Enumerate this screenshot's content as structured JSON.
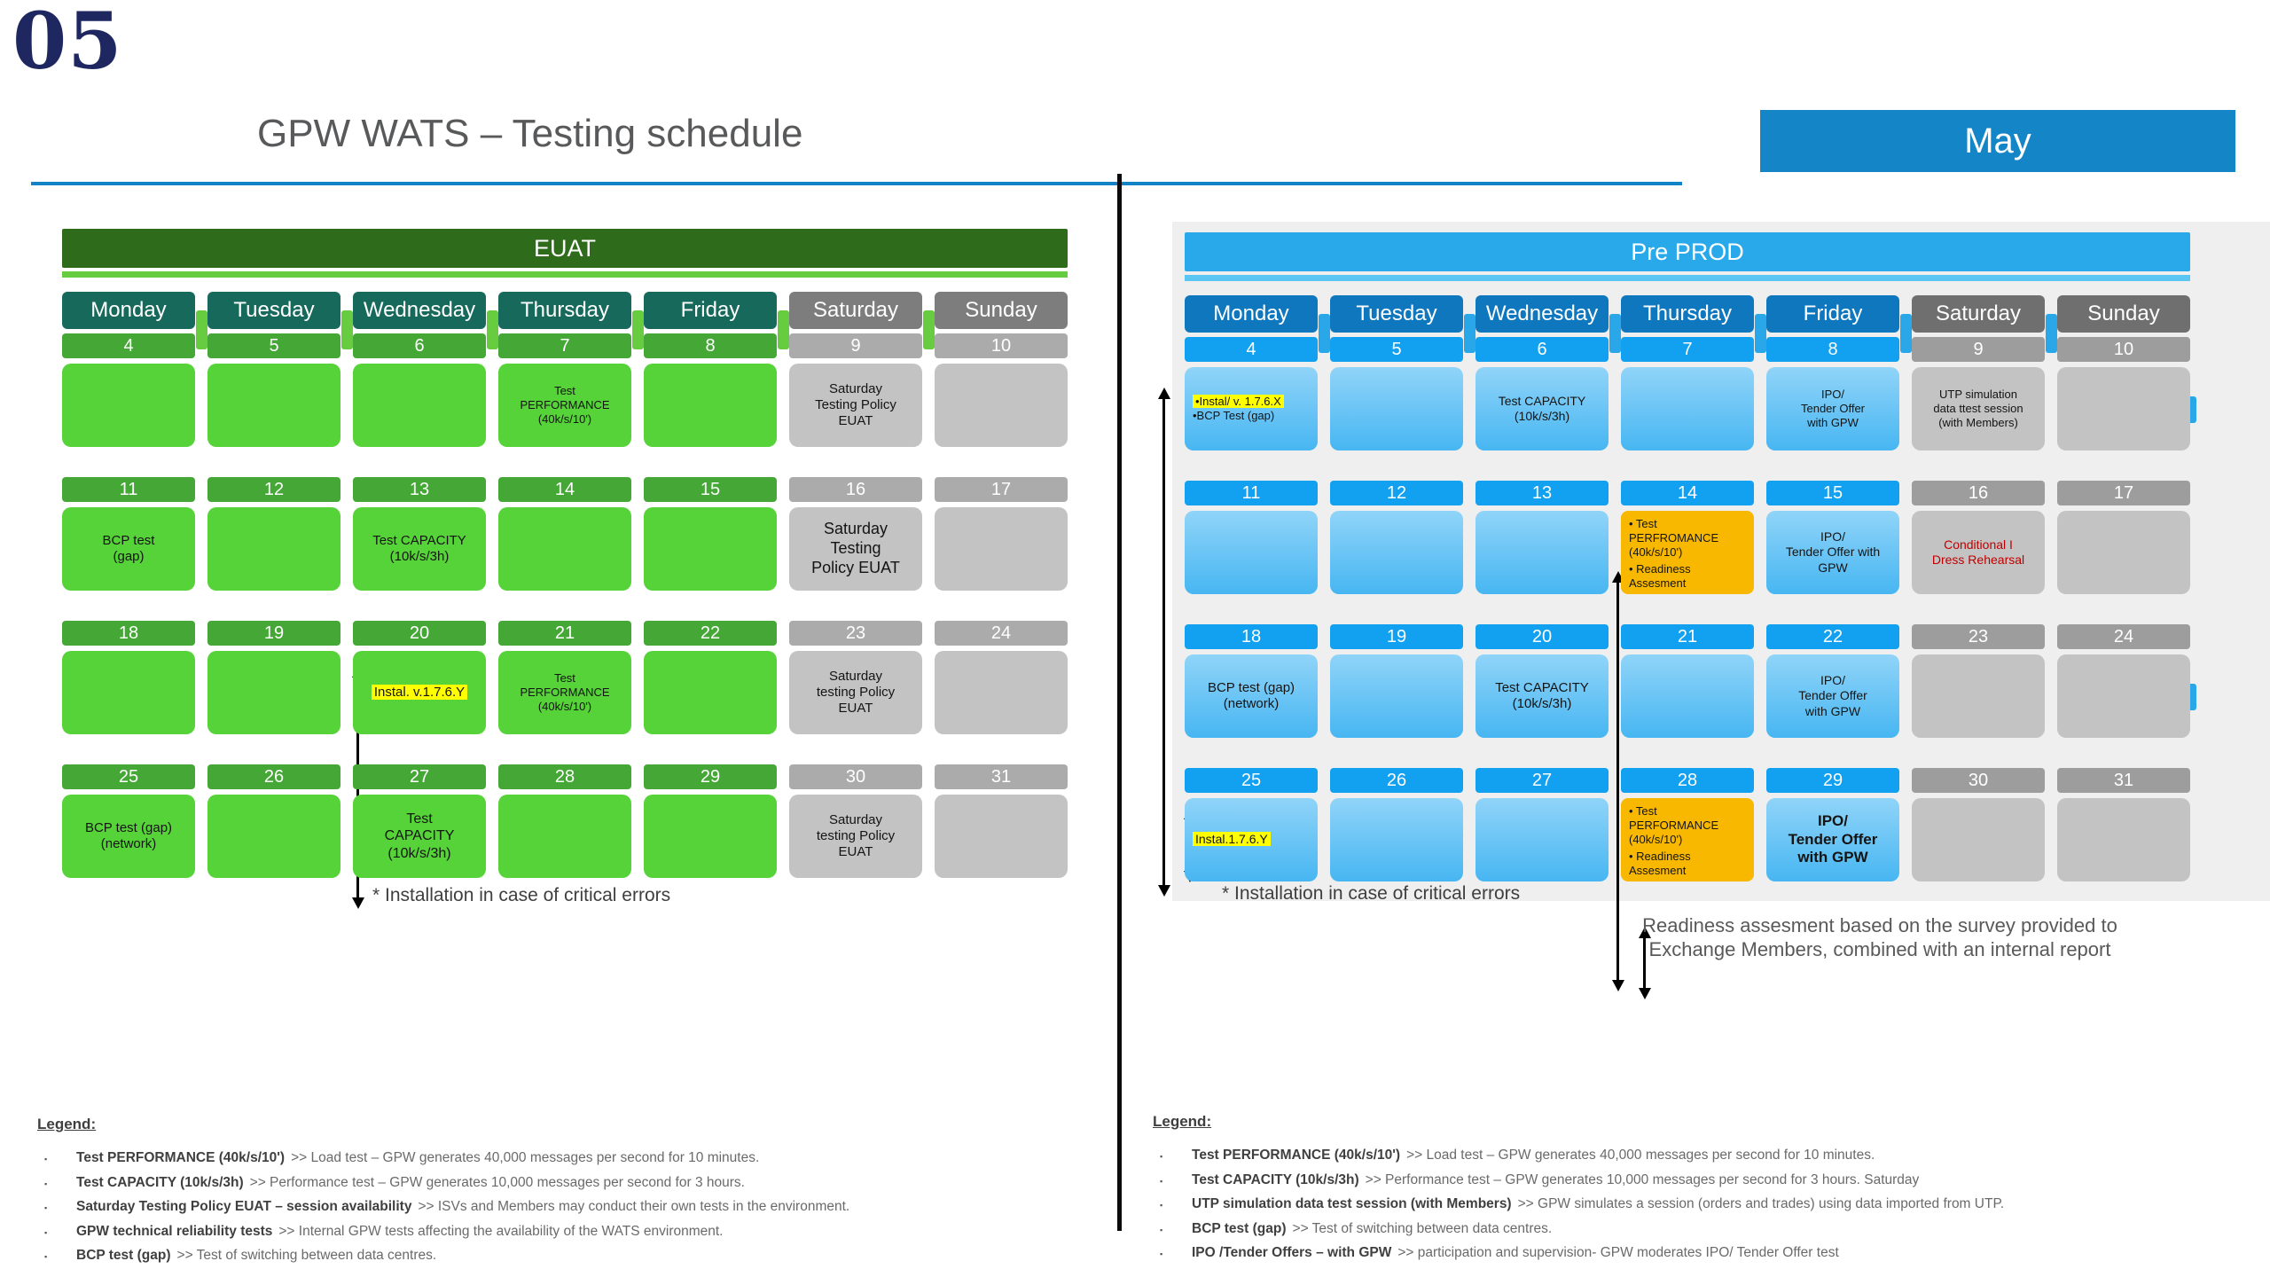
{
  "slide": {
    "page_number": "05",
    "title": "GPW WATS – Testing schedule",
    "month": "May"
  },
  "day_names": [
    "Monday",
    "Tuesday",
    "Wednesday",
    "Thursday",
    "Friday",
    "Saturday",
    "Sunday"
  ],
  "installation_footnote": "* Installation in case of critical errors",
  "readiness_note": {
    "line1": "Readiness assesment based on the survey provided to",
    "line2": "Exchange Members, combined with an internal report"
  },
  "legend_bullet": "▪",
  "calendars": [
    {
      "id": "euat",
      "theme": "euat",
      "title": "EUAT",
      "edge_tabs": false,
      "weeks": [
        {
          "dates": [
            "4",
            "5",
            "6",
            "7",
            "8",
            "9",
            "10"
          ],
          "events": [
            null,
            null,
            null,
            {
              "lines": [
                "Test",
                "PERFORMANCE",
                "(40k/s/10')"
              ],
              "size": 13
            },
            null,
            {
              "lines": [
                "Saturday",
                "Testing Policy",
                "EUAT"
              ],
              "size": 15
            },
            null
          ]
        },
        {
          "dates": [
            "11",
            "12",
            "13",
            "14",
            "15",
            "16",
            "17"
          ],
          "events": [
            {
              "lines": [
                "BCP test",
                "(gap)"
              ],
              "size": 15
            },
            null,
            {
              "lines": [
                "Test CAPACITY",
                "(10k/s/3h)"
              ],
              "size": 15
            },
            null,
            null,
            {
              "lines": [
                "Saturday",
                "Testing",
                "Policy EUAT"
              ],
              "size": 18
            },
            null
          ]
        },
        {
          "dates": [
            "18",
            "19",
            "20",
            "21",
            "22",
            "23",
            "24"
          ],
          "events": [
            null,
            null,
            {
              "lines": [
                "Instal. v.1.7.6.Y"
              ],
              "size": 15,
              "hl": [
                0
              ]
            },
            {
              "lines": [
                "Test",
                "PERFORMANCE",
                "(40k/s/10')"
              ],
              "size": 13
            },
            null,
            {
              "lines": [
                "Saturday",
                "testing Policy",
                "EUAT"
              ],
              "size": 15
            },
            null
          ]
        },
        {
          "dates": [
            "25",
            "26",
            "27",
            "28",
            "29",
            "30",
            "31"
          ],
          "events": [
            {
              "lines": [
                "BCP test (gap)",
                "(network)"
              ],
              "size": 15
            },
            null,
            {
              "lines": [
                "Test",
                "CAPACITY",
                "(10k/s/3h)"
              ],
              "size": 16
            },
            null,
            null,
            {
              "lines": [
                "Saturday",
                "testing Policy",
                "EUAT"
              ],
              "size": 15
            },
            null
          ]
        }
      ],
      "legend_ref": "left"
    },
    {
      "id": "preprod",
      "theme": "preprod",
      "title": "Pre PROD",
      "edge_tabs": true,
      "weeks": [
        {
          "dates": [
            "4",
            "5",
            "6",
            "7",
            "8",
            "9",
            "10"
          ],
          "events": [
            {
              "lines": [
                "•Instal/ v. 1.7.6.X",
                "•BCP Test (gap)"
              ],
              "size": 13,
              "align": "left",
              "hl": [
                0
              ]
            },
            null,
            {
              "lines": [
                "Test CAPACITY",
                "(10k/s/3h)"
              ],
              "size": 14
            },
            null,
            {
              "lines": [
                "IPO/",
                "Tender Offer",
                "with GPW"
              ],
              "size": 13
            },
            {
              "lines": [
                "UTP simulation",
                "data ttest session",
                "(with Members)"
              ],
              "size": 13
            },
            null
          ]
        },
        {
          "dates": [
            "11",
            "12",
            "13",
            "14",
            "15",
            "16",
            "17"
          ],
          "events": [
            null,
            null,
            null,
            {
              "style": "orange",
              "align": "left",
              "size": 13,
              "lines": [
                "• Test",
                "PERFROMANCE",
                "(40k/s/10')",
                "",
                "• Readiness",
                "Assesment"
              ]
            },
            {
              "lines": [
                "IPO/",
                "Tender Offer with",
                "GPW"
              ],
              "size": 14
            },
            {
              "style": "red",
              "lines": [
                "Conditional I",
                "Dress Rehearsal"
              ],
              "size": 14
            },
            null
          ]
        },
        {
          "dates": [
            "18",
            "19",
            "20",
            "21",
            "22",
            "23",
            "24"
          ],
          "events": [
            {
              "lines": [
                "BCP test (gap)",
                "(network)"
              ],
              "size": 15
            },
            null,
            {
              "lines": [
                "Test CAPACITY",
                "(10k/s/3h)"
              ],
              "size": 15
            },
            null,
            {
              "lines": [
                "IPO/",
                "Tender Offer",
                "with GPW"
              ],
              "size": 14
            },
            null,
            null
          ]
        },
        {
          "dates": [
            "25",
            "26",
            "27",
            "28",
            "29",
            "30",
            "31"
          ],
          "events": [
            {
              "lines": [
                "Instal.1.7.6.Y"
              ],
              "size": 14,
              "align": "left",
              "hl": [
                0
              ]
            },
            null,
            null,
            {
              "style": "orange",
              "align": "left",
              "size": 13,
              "lines": [
                "• Test",
                "PERFORMANCE",
                "(40k/s/10')",
                "",
                "• Readiness",
                "Assesment"
              ]
            },
            {
              "lines": [
                "IPO/",
                "Tender Offer",
                "with GPW"
              ],
              "size": 17,
              "bold": true
            },
            null,
            null
          ]
        }
      ],
      "legend_ref": "right"
    }
  ],
  "legends": [
    {
      "heading": "Legend:",
      "items": [
        {
          "term": "Test PERFORMANCE (40k/s/10')",
          "desc": ">> Load test – GPW generates 40,000 messages per second for 10 minutes."
        },
        {
          "term": "Test CAPACITY (10k/s/3h)",
          "desc": ">> Performance test – GPW generates 10,000 messages per second for 3 hours."
        },
        {
          "term": "Saturday Testing Policy EUAT – session availability",
          "desc": ">> ISVs and Members may conduct their own tests in the environment."
        },
        {
          "term": "GPW technical reliability tests",
          "desc": ">> Internal GPW tests affecting the availability of the WATS environment."
        },
        {
          "term": "BCP test (gap)",
          "desc": ">> Test of switching between data centres."
        }
      ]
    },
    {
      "heading": "Legend:",
      "items": [
        {
          "term": "Test PERFORMANCE (40k/s/10')",
          "desc": ">> Load test – GPW generates 40,000 messages per second for 10 minutes."
        },
        {
          "term": "Test CAPACITY (10k/s/3h)",
          "desc": ">> Performance test – GPW generates 10,000 messages per second for 3 hours. Saturday"
        },
        {
          "term": "UTP simulation data test session (with Members)",
          "desc": ">> GPW simulates a session (orders and trades) using data imported from UTP."
        },
        {
          "term": "BCP test (gap)",
          "desc": ">> Test of switching between data centres."
        },
        {
          "term": "IPO /Tender Offers – with GPW",
          "desc": ">> participation and supervision- GPW moderates IPO/ Tender Offer test"
        }
      ]
    }
  ]
}
